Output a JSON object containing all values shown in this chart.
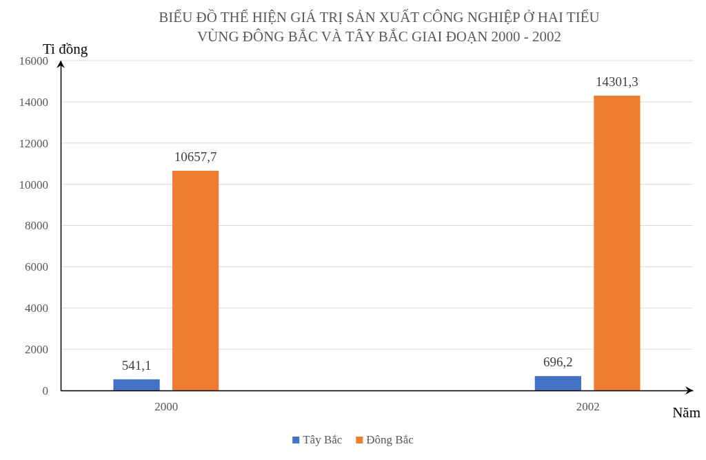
{
  "chart_data": {
    "type": "bar",
    "title": "BIỂU ĐỒ THỂ HIỆN GIÁ TRỊ SẢN XUẤT CÔNG NGHIỆP Ở HAI TIỂU VÙNG ĐÔNG BẮC VÀ TÂY BẮC GIAI ĐOẠN 2000 - 2002",
    "xlabel": "Năm",
    "ylabel": "Ti đồng",
    "categories": [
      "2000",
      "2002"
    ],
    "series": [
      {
        "name": "Tây Bắc",
        "color": "#4472c4",
        "values": [
          541.1,
          696.2
        ],
        "value_labels": [
          "541,1",
          "696,2"
        ]
      },
      {
        "name": "Đông Bắc",
        "color": "#ed7d31",
        "values": [
          10657.7,
          14301.3
        ],
        "value_labels": [
          "10657,7",
          "14301,3"
        ]
      }
    ],
    "ylim": [
      0,
      16000
    ],
    "yticks": [
      0,
      2000,
      4000,
      6000,
      8000,
      10000,
      12000,
      14000,
      16000
    ],
    "grid": "y",
    "legend": "bottom"
  }
}
